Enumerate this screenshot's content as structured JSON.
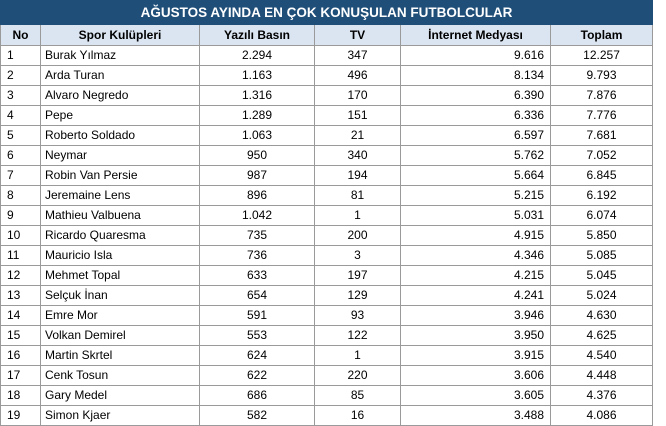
{
  "title": "AĞUSTOS AYINDA EN ÇOK KONUŞULAN FUTBOLCULAR",
  "headers": [
    "No",
    "Spor Kulüpleri",
    "Yazılı Basın",
    "TV",
    "İnternet Medyası",
    "Toplam"
  ],
  "rows": [
    [
      "1",
      "Burak Yılmaz",
      "2.294",
      "347",
      "9.616",
      "12.257"
    ],
    [
      "2",
      "Arda Turan",
      "1.163",
      "496",
      "8.134",
      "9.793"
    ],
    [
      "3",
      "Alvaro Negredo",
      "1.316",
      "170",
      "6.390",
      "7.876"
    ],
    [
      "4",
      "Pepe",
      "1.289",
      "151",
      "6.336",
      "7.776"
    ],
    [
      "5",
      "Roberto Soldado",
      "1.063",
      "21",
      "6.597",
      "7.681"
    ],
    [
      "6",
      "Neymar",
      "950",
      "340",
      "5.762",
      "7.052"
    ],
    [
      "7",
      "Robin Van Persie",
      "987",
      "194",
      "5.664",
      "6.845"
    ],
    [
      "8",
      "Jeremaine Lens",
      "896",
      "81",
      "5.215",
      "6.192"
    ],
    [
      "9",
      "Mathieu Valbuena",
      "1.042",
      "1",
      "5.031",
      "6.074"
    ],
    [
      "10",
      "Ricardo Quaresma",
      "735",
      "200",
      "4.915",
      "5.850"
    ],
    [
      "11",
      "Mauricio Isla",
      "736",
      "3",
      "4.346",
      "5.085"
    ],
    [
      "12",
      "Mehmet Topal",
      "633",
      "197",
      "4.215",
      "5.045"
    ],
    [
      "13",
      "Selçuk İnan",
      "654",
      "129",
      "4.241",
      "5.024"
    ],
    [
      "14",
      "Emre Mor",
      "591",
      "93",
      "3.946",
      "4.630"
    ],
    [
      "15",
      "Volkan Demirel",
      "553",
      "122",
      "3.950",
      "4.625"
    ],
    [
      "16",
      "Martin Skrtel",
      "624",
      "1",
      "3.915",
      "4.540"
    ],
    [
      "17",
      "Cenk Tosun",
      "622",
      "220",
      "3.606",
      "4.448"
    ],
    [
      "18",
      "Gary Medel",
      "686",
      "85",
      "3.605",
      "4.376"
    ],
    [
      "19",
      "Simon Kjaer",
      "582",
      "16",
      "3.488",
      "4.086"
    ]
  ],
  "colors": {
    "title_bg": "#1f4e79",
    "title_text": "#ffffff",
    "header_bg": "#dbe5f1",
    "grid": "#9a9a9a"
  }
}
